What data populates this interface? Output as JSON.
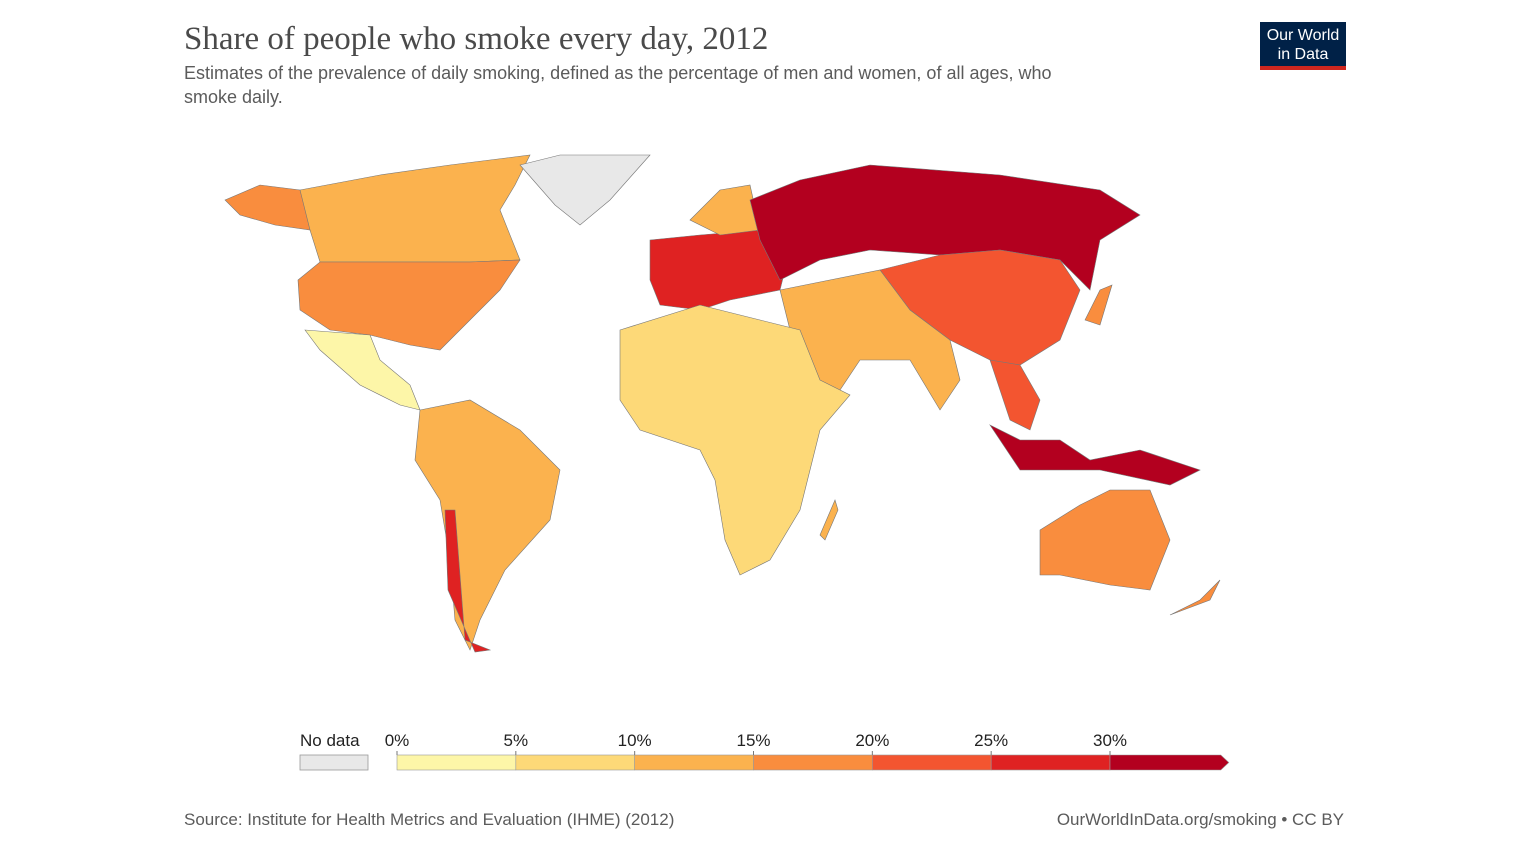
{
  "header": {
    "title": "Share of people who smoke every day, 2012",
    "subtitle_lines": [
      "Estimates of the prevalence of daily smoking, defined as the percentage of men and women, of all ages, who",
      "smoke daily."
    ],
    "logo_lines": [
      "Our World",
      "in Data"
    ]
  },
  "legend": {
    "no_data_label": "No data",
    "no_data_color": "#e8e8e8",
    "ticks": [
      {
        "value": 0,
        "label": "0%"
      },
      {
        "value": 5,
        "label": "5%"
      },
      {
        "value": 10,
        "label": "10%"
      },
      {
        "value": 15,
        "label": "15%"
      },
      {
        "value": 20,
        "label": "20%"
      },
      {
        "value": 25,
        "label": "25%"
      },
      {
        "value": 30,
        "label": "30%"
      }
    ],
    "colors": [
      "#fdf6a8",
      "#fdd978",
      "#fbb24e",
      "#f98d3e",
      "#f35530",
      "#df2222",
      "#b3001f"
    ]
  },
  "footer": {
    "source": "Source: Institute for Health Metrics and Evaluation (IHME) (2012)",
    "credit": "OurWorldInData.org/smoking • CC BY"
  }
}
